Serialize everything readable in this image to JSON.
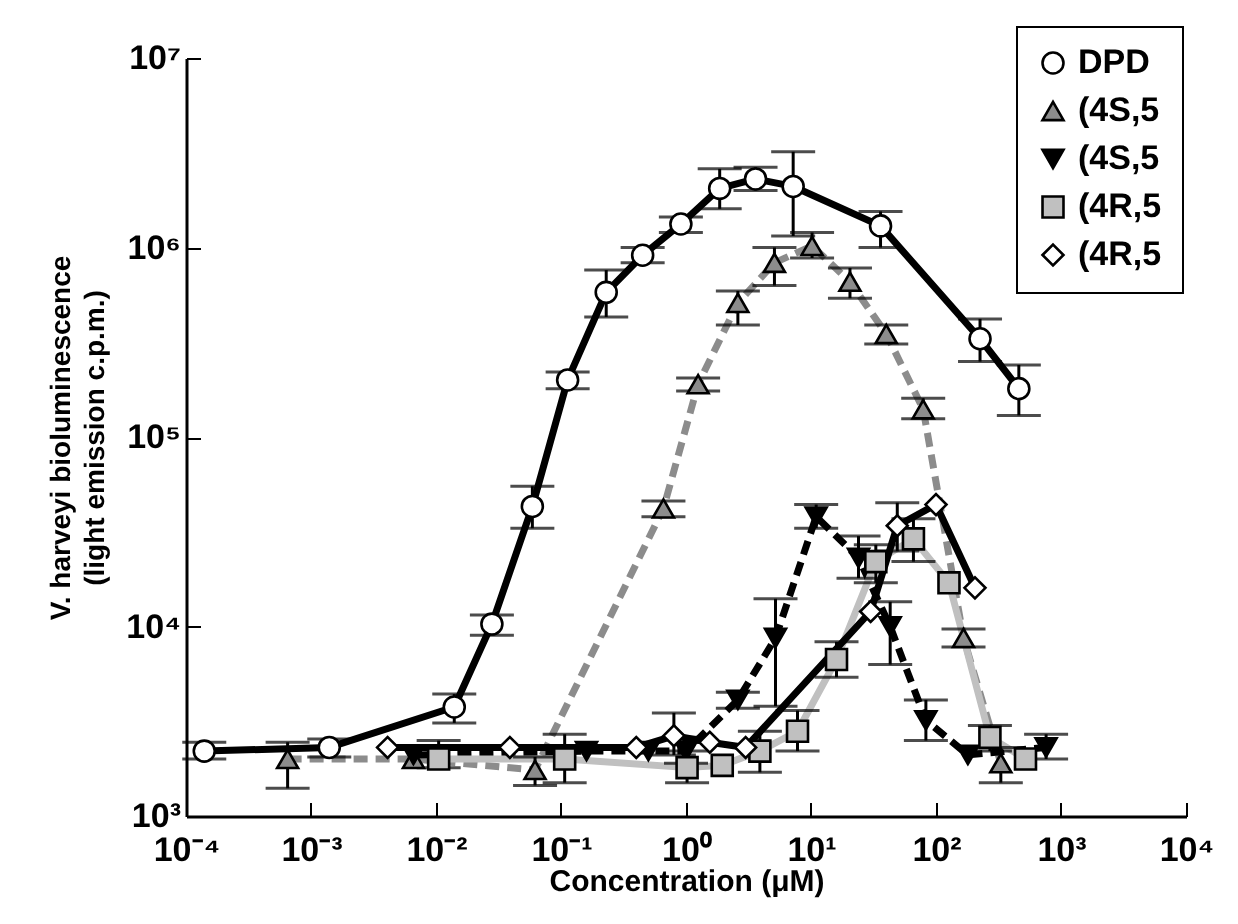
{
  "chart_data": {
    "type": "line",
    "xlabel": "Concentration (μM)",
    "ylabel": "V. harveyi bioluminescence\n(light emission c.p.m.)",
    "log": "xy",
    "grid": false,
    "legend": "top right",
    "xlim": [
      0.0001,
      10000
    ],
    "ylim": [
      1000,
      10000000
    ],
    "xticks": [
      {
        "value": 0.0001,
        "label": "10⁻⁴"
      },
      {
        "value": 0.001,
        "label": "10⁻³"
      },
      {
        "value": 0.01,
        "label": "10⁻²"
      },
      {
        "value": 0.1,
        "label": "10⁻¹"
      },
      {
        "value": 1,
        "label": "10⁰"
      },
      {
        "value": 10,
        "label": "10¹"
      },
      {
        "value": 100,
        "label": "10²"
      },
      {
        "value": 1000,
        "label": "10³"
      },
      {
        "value": 10000,
        "label": "10⁴"
      }
    ],
    "yticks": [
      {
        "value": 1000,
        "label": "10³"
      },
      {
        "value": 10000,
        "label": "10⁴"
      },
      {
        "value": 100000,
        "label": "10⁵"
      },
      {
        "value": 1000000,
        "label": "10⁶"
      },
      {
        "value": 10000000,
        "label": "10⁷"
      }
    ],
    "series": [
      {
        "name": "DPD",
        "color": "#000000",
        "marker": "circle",
        "line_style": "solid",
        "x": [
          0.00014,
          0.0014,
          0.014,
          0.028,
          0.059,
          0.113,
          0.23,
          0.45,
          0.91,
          1.86,
          3.6,
          7.2,
          36,
          225,
          460
        ],
        "values": [
          2200,
          2300,
          3760,
          10300,
          43000,
          200000,
          580000,
          910000,
          1330000,
          2050000,
          2300000,
          2100000,
          1300000,
          330000,
          180000
        ],
        "errors": [
          [
            2000,
            2450
          ],
          [
            2050,
            2550
          ],
          [
            3100,
            4400
          ],
          [
            9000,
            11500
          ],
          [
            33000,
            55000
          ],
          [
            180000,
            220000
          ],
          [
            430000,
            760000
          ],
          [
            830000,
            1000000
          ],
          [
            1200000,
            1450000
          ],
          [
            1600000,
            2600000
          ],
          [
            2000000,
            2650000
          ],
          [
            1150000,
            3200000
          ],
          [
            1000000,
            1550000
          ],
          [
            250000,
            420000
          ],
          [
            130000,
            240000
          ]
        ]
      },
      {
        "name": "(4S,5",
        "color": "#8c8c8c",
        "marker": "triangle",
        "line_style": "dashed",
        "x": [
          0.00065,
          0.0066,
          0.062,
          0.66,
          1.25,
          2.6,
          5.1,
          10.2,
          20.5,
          40,
          79,
          166,
          330
        ],
        "values": [
          2000,
          2000,
          1750,
          42000,
          190000,
          510000,
          830000,
          1020000,
          660000,
          350000,
          140000,
          8700,
          1900
        ],
        "errors": [
          [
            1400,
            2450
          ],
          null,
          [
            1450,
            2050
          ],
          [
            38000,
            46000
          ],
          [
            175000,
            205000
          ],
          [
            390000,
            590000
          ],
          [
            630000,
            1000000
          ],
          [
            880000,
            1200000
          ],
          [
            540000,
            780000
          ],
          [
            310000,
            390000
          ],
          [
            125000,
            160000
          ],
          [
            7800,
            9700
          ],
          [
            1500,
            2300
          ]
        ]
      },
      {
        "name": "(4S,5",
        "color": "#000000",
        "marker": "triangle-down",
        "line_style": "dashed",
        "x": [
          0.0066,
          0.16,
          0.5,
          1.0,
          2.6,
          5.2,
          11,
          24,
          43,
          83,
          180,
          760
        ],
        "values": [
          2100,
          2200,
          2200,
          2200,
          4100,
          8700,
          38000,
          23000,
          10000,
          3200,
          2100,
          2300
        ],
        "errors": [
          null,
          null,
          null,
          [
            1900,
            2600
          ],
          [
            3700,
            4500
          ],
          [
            3800,
            14000
          ],
          [
            33000,
            44000
          ],
          [
            18000,
            30000
          ],
          [
            6300,
            13500
          ],
          [
            2500,
            4100
          ],
          null,
          [
            2000,
            2700
          ]
        ]
      },
      {
        "name": "(4R,5",
        "color": "#c0c0c0",
        "marker": "square",
        "line_style": "solid",
        "x": [
          0.0105,
          0.107,
          1.02,
          1.95,
          3.9,
          7.8,
          16,
          33,
          66,
          127,
          270,
          520
        ],
        "values": [
          2000,
          2000,
          1800,
          1850,
          2200,
          2800,
          6700,
          22000,
          29000,
          17000,
          2600,
          2000
        ],
        "errors": [
          [
            1800,
            2500
          ],
          [
            1500,
            2700
          ],
          [
            1500,
            2200
          ],
          null,
          [
            1700,
            2800
          ],
          [
            2200,
            3600
          ],
          [
            5400,
            8300
          ],
          [
            17000,
            27000
          ],
          [
            22000,
            37000
          ],
          null,
          [
            2200,
            3000
          ],
          null
        ]
      },
      {
        "name": "(4R,5",
        "color": "#000000",
        "marker": "diamond",
        "line_style": "solid",
        "x": [
          0.0041,
          0.039,
          0.4,
          0.8,
          1.55,
          3.0,
          30,
          49,
          100,
          205
        ],
        "values": [
          2300,
          2300,
          2300,
          2650,
          2450,
          2300,
          12000,
          34000,
          44000,
          16000
        ],
        "errors": [
          null,
          null,
          null,
          [
            2100,
            3500
          ],
          null,
          null,
          null,
          [
            25000,
            45000
          ],
          null,
          null
        ]
      }
    ]
  }
}
